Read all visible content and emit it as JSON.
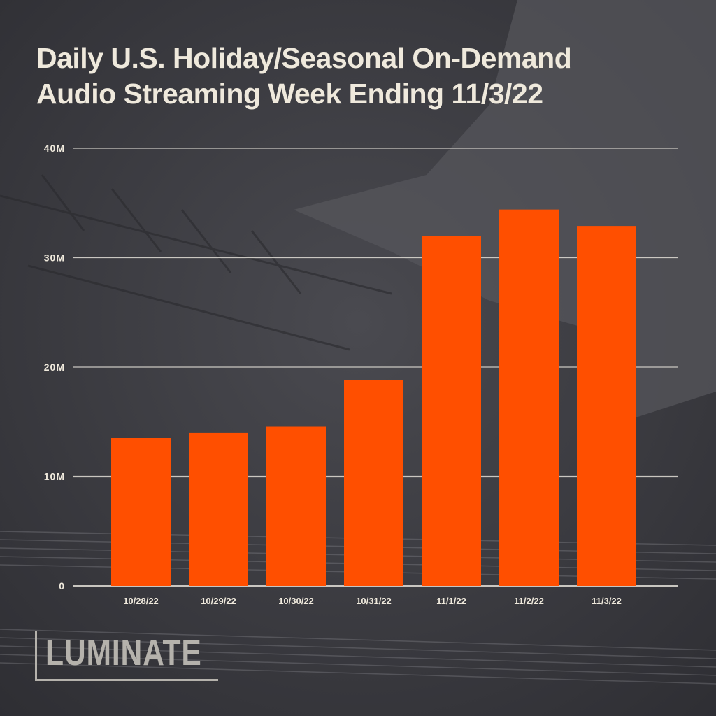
{
  "title_lines": [
    "Daily U.S. Holiday/Seasonal On-Demand",
    "Audio Streaming Week Ending 11/3/22"
  ],
  "brand": "LUMINATE",
  "colors": {
    "bar": "#ff4f00",
    "text": "#efe9dc",
    "grid": "#d9d6cf",
    "background": "#3a3a40"
  },
  "chart_data": {
    "type": "bar",
    "title": "Daily U.S. Holiday/Seasonal On-Demand Audio Streaming Week Ending 11/3/22",
    "categories": [
      "10/28/22",
      "10/29/22",
      "10/30/22",
      "10/31/22",
      "11/1/22",
      "11/2/22",
      "11/3/22"
    ],
    "values": [
      13.5,
      14.0,
      14.6,
      18.8,
      32.0,
      34.4,
      32.9
    ],
    "unit": "M",
    "yticks": [
      0,
      10,
      20,
      30,
      40
    ],
    "ytick_labels": [
      "0",
      "10M",
      "20M",
      "30M",
      "40M"
    ],
    "ylim": [
      0,
      40
    ],
    "grid": true,
    "legend": "none"
  }
}
